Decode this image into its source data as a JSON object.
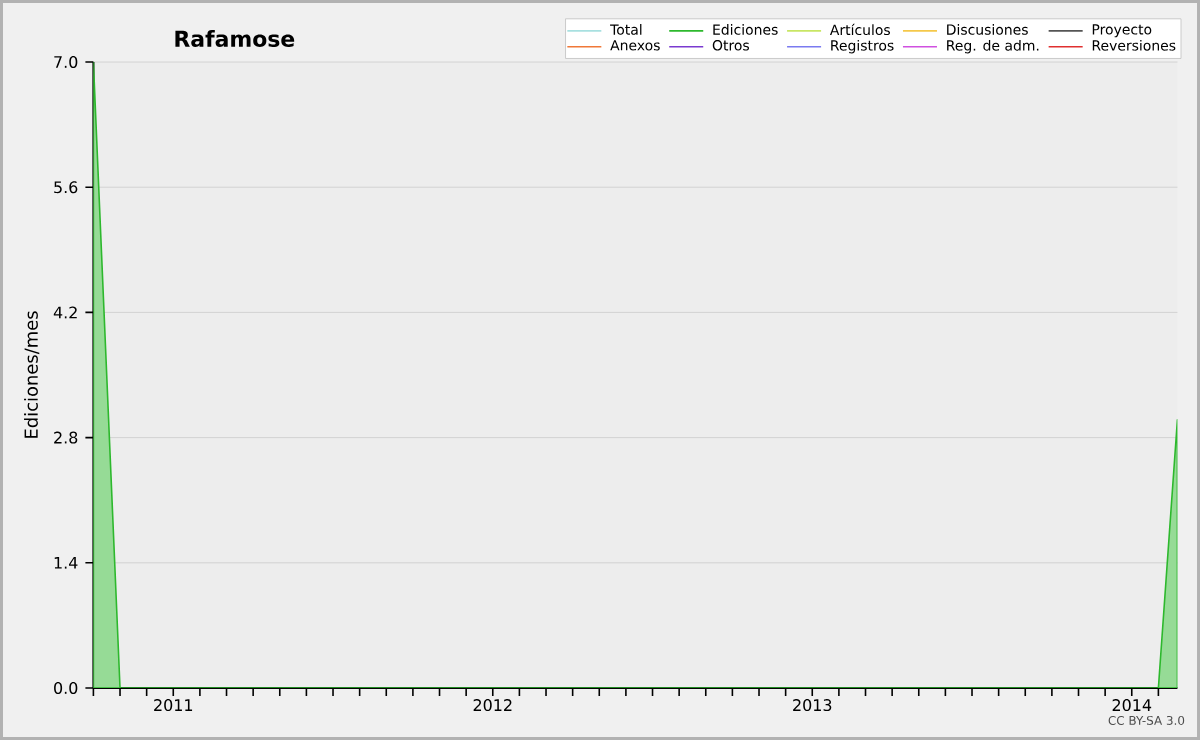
{
  "chart_data": {
    "type": "area",
    "title": "Rafamose",
    "ylabel": "Ediciones/mes",
    "x": [
      "2010-10-01",
      "2010-11-01",
      "2014-02-01",
      "2014-02-21"
    ],
    "series": [
      {
        "name": "Total",
        "color": "#a8e0e0",
        "values": [
          null,
          null,
          null,
          null
        ]
      },
      {
        "name": "Ediciones",
        "color": "#2db82d",
        "values": [
          7.0,
          0,
          0,
          3.0
        ]
      },
      {
        "name": "Artículos",
        "color": "#c8e664",
        "values": [
          null,
          null,
          null,
          null
        ]
      },
      {
        "name": "Discusiones",
        "color": "#f5c84a",
        "values": [
          null,
          null,
          null,
          null
        ]
      },
      {
        "name": "Proyecto",
        "color": "#555555",
        "values": [
          null,
          null,
          null,
          null
        ]
      },
      {
        "name": "Anexos",
        "color": "#f07838",
        "values": [
          null,
          null,
          null,
          null
        ]
      },
      {
        "name": "Otros",
        "color": "#7a3ad0",
        "values": [
          null,
          null,
          null,
          null
        ]
      },
      {
        "name": "Registros",
        "color": "#7a7af0",
        "values": [
          null,
          null,
          null,
          null
        ]
      },
      {
        "name": "Reg. de adm.",
        "color": "#d050e0",
        "values": [
          null,
          null,
          null,
          null
        ]
      },
      {
        "name": "Reversiones",
        "color": "#e03030",
        "values": [
          null,
          null,
          null,
          null
        ]
      }
    ],
    "xlim": [
      "2010-10-01",
      "2014-02-21"
    ],
    "xticks": [
      {
        "value": "2010-10",
        "label": null
      },
      {
        "value": "2010-11",
        "label": null
      },
      {
        "value": "2010-12",
        "label": null
      },
      {
        "value": "2011-01",
        "label": "2011"
      },
      {
        "value": "2011-02",
        "label": null
      },
      {
        "value": "2011-03",
        "label": null
      },
      {
        "value": "2011-04",
        "label": null
      },
      {
        "value": "2011-05",
        "label": null
      },
      {
        "value": "2011-06",
        "label": null
      },
      {
        "value": "2011-07",
        "label": null
      },
      {
        "value": "2011-08",
        "label": null
      },
      {
        "value": "2011-09",
        "label": null
      },
      {
        "value": "2011-10",
        "label": null
      },
      {
        "value": "2011-11",
        "label": null
      },
      {
        "value": "2011-12",
        "label": null
      },
      {
        "value": "2012-01",
        "label": "2012"
      },
      {
        "value": "2012-02",
        "label": null
      },
      {
        "value": "2012-03",
        "label": null
      },
      {
        "value": "2012-04",
        "label": null
      },
      {
        "value": "2012-05",
        "label": null
      },
      {
        "value": "2012-06",
        "label": null
      },
      {
        "value": "2012-07",
        "label": null
      },
      {
        "value": "2012-08",
        "label": null
      },
      {
        "value": "2012-09",
        "label": null
      },
      {
        "value": "2012-10",
        "label": null
      },
      {
        "value": "2012-11",
        "label": null
      },
      {
        "value": "2012-12",
        "label": null
      },
      {
        "value": "2013-01",
        "label": "2013"
      },
      {
        "value": "2013-02",
        "label": null
      },
      {
        "value": "2013-03",
        "label": null
      },
      {
        "value": "2013-04",
        "label": null
      },
      {
        "value": "2013-05",
        "label": null
      },
      {
        "value": "2013-06",
        "label": null
      },
      {
        "value": "2013-07",
        "label": null
      },
      {
        "value": "2013-08",
        "label": null
      },
      {
        "value": "2013-09",
        "label": null
      },
      {
        "value": "2013-10",
        "label": null
      },
      {
        "value": "2013-11",
        "label": null
      },
      {
        "value": "2013-12",
        "label": null
      },
      {
        "value": "2014-01",
        "label": "2014"
      },
      {
        "value": "2014-02",
        "label": null
      }
    ],
    "ylim": [
      0,
      7.0
    ],
    "yticks": [
      {
        "value": 0,
        "label": "0.0"
      },
      {
        "value": 1.4,
        "label": "1.4"
      },
      {
        "value": 2.8,
        "label": "2.8"
      },
      {
        "value": 4.2,
        "label": "4.2"
      },
      {
        "value": 5.6,
        "label": "5.6"
      },
      {
        "value": 7.0,
        "label": "7.0"
      }
    ],
    "grid": "y",
    "legend": "top right",
    "annotations": [
      "CC BY-SA 3.0"
    ]
  }
}
